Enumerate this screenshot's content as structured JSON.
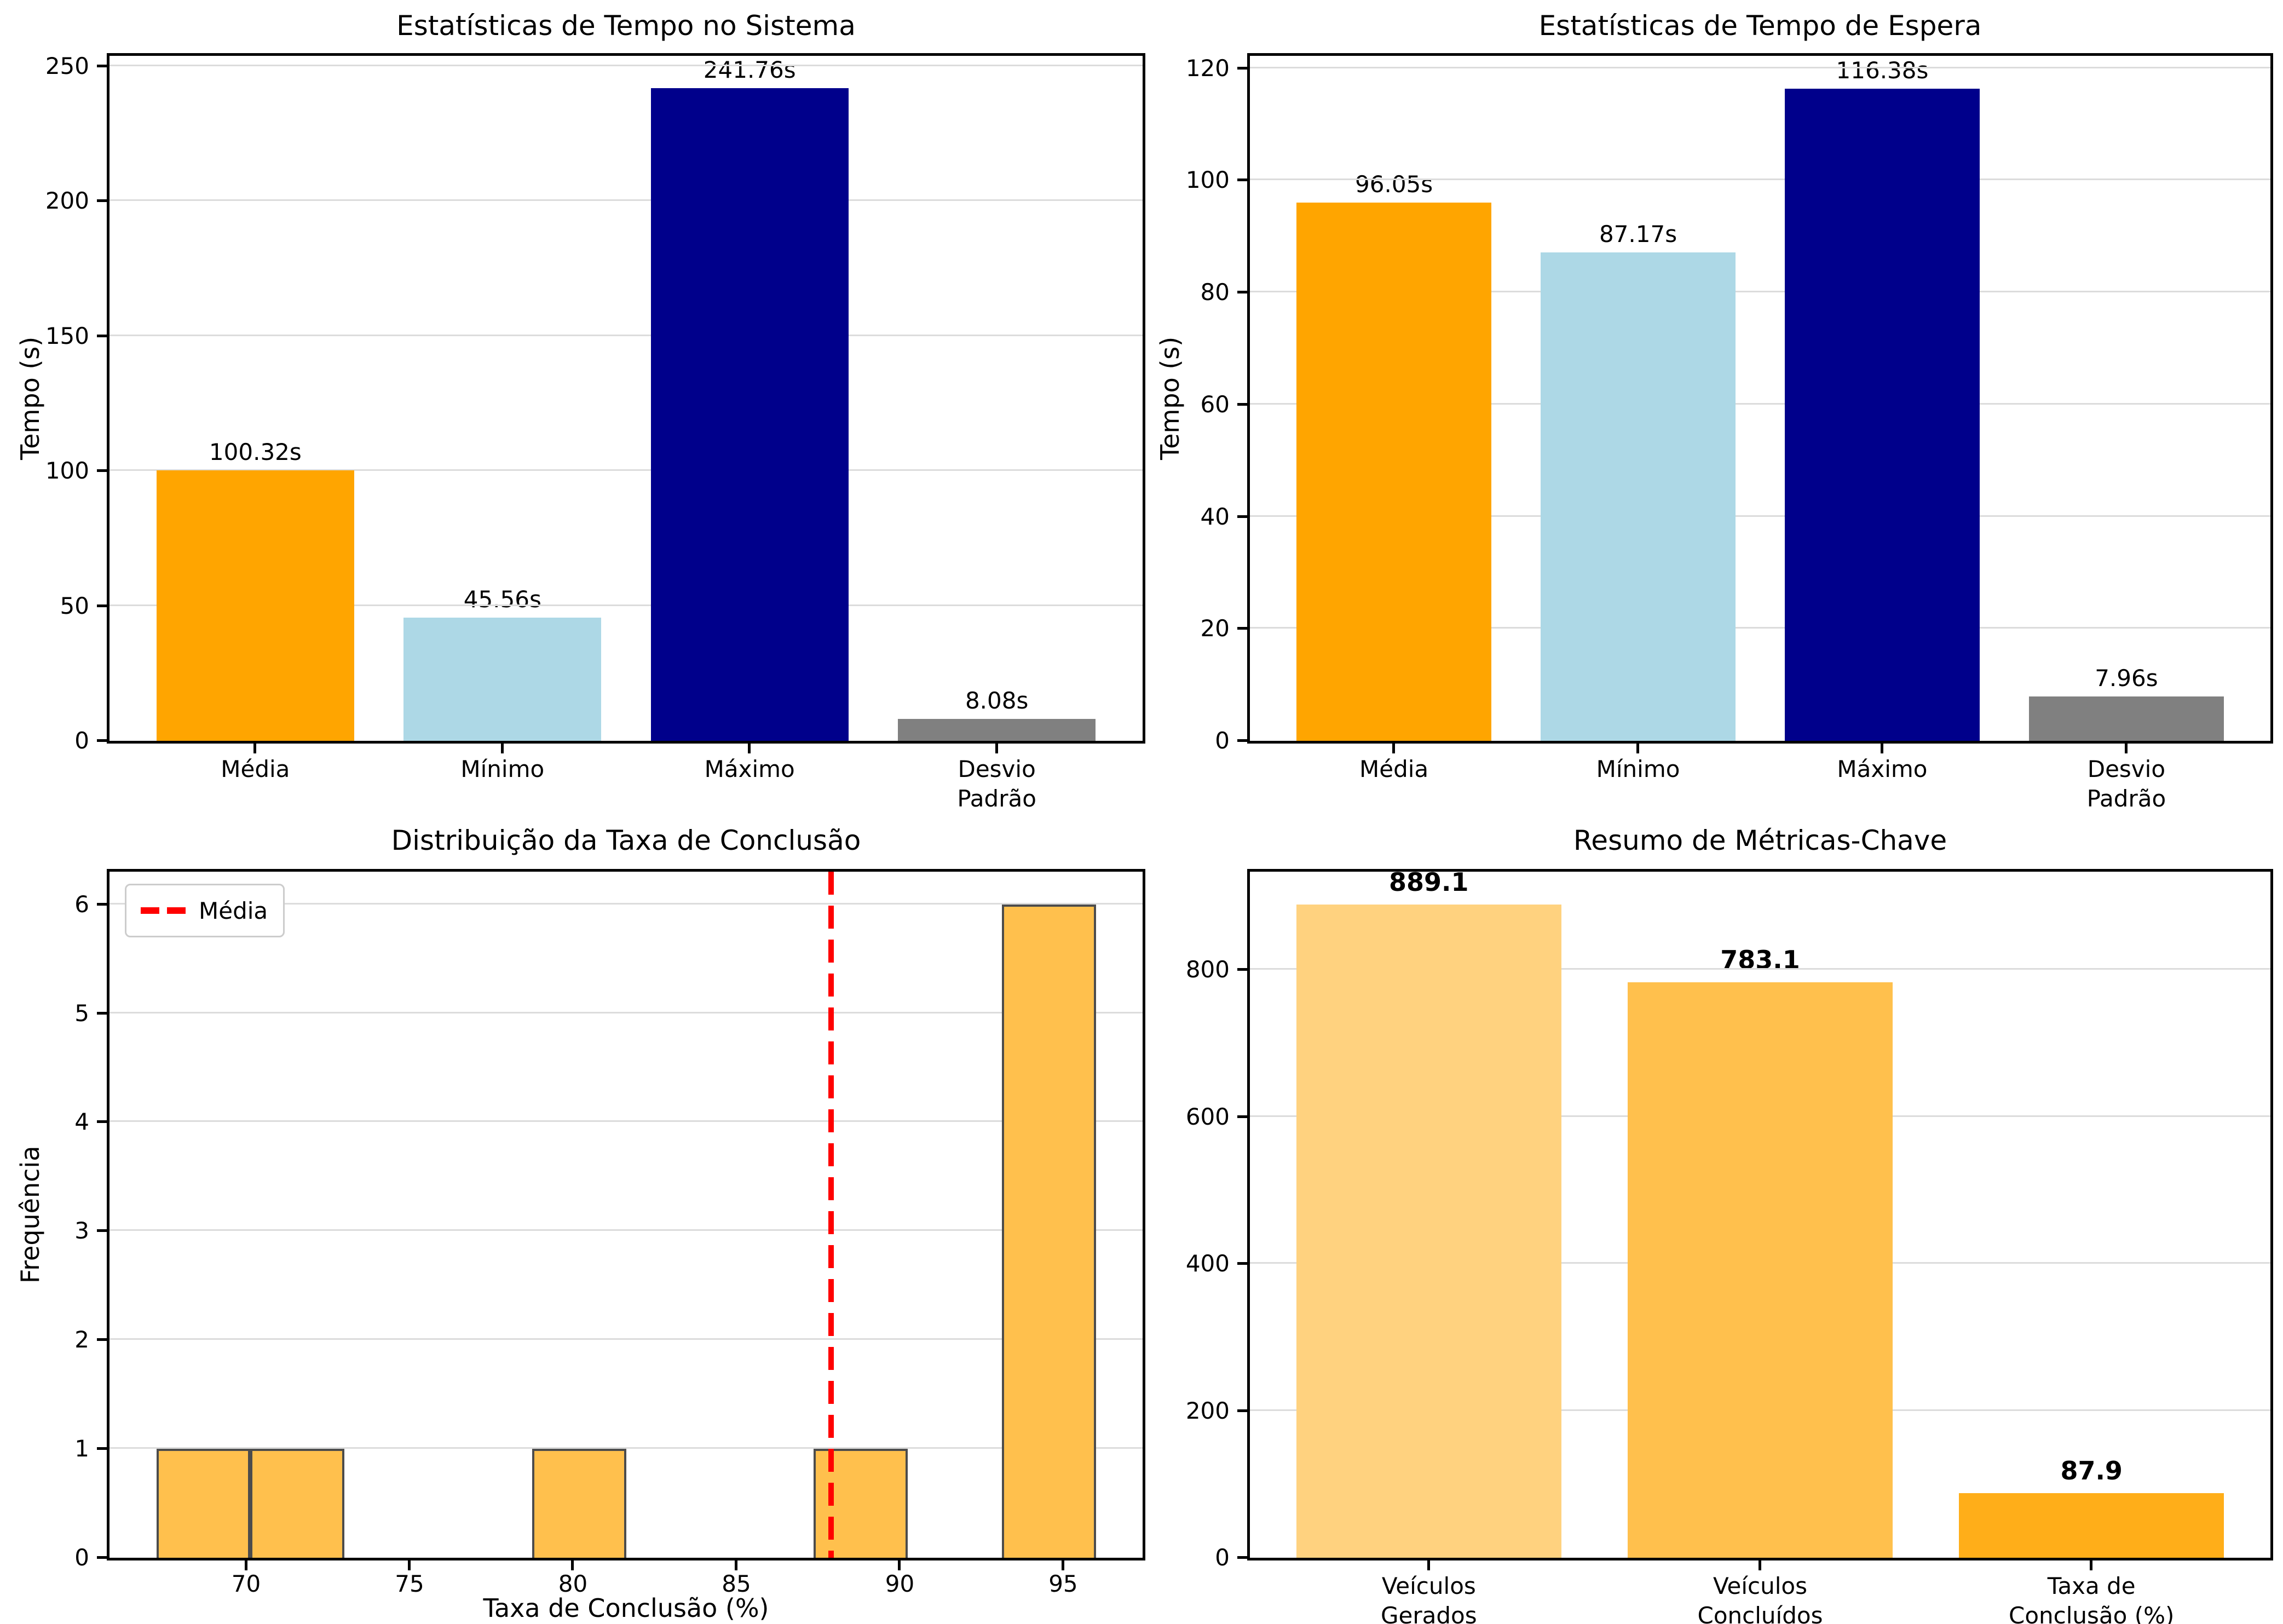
{
  "figure": {
    "background": "#ffffff"
  },
  "chart_data": [
    {
      "type": "bar",
      "title": "Estatísticas de Tempo no Sistema",
      "ylabel": "Tempo (s)",
      "categories": [
        [
          "Média"
        ],
        [
          "Mínimo"
        ],
        [
          "Máximo"
        ],
        [
          "Desvio",
          "Padrão"
        ]
      ],
      "values": [
        100.32,
        45.56,
        241.76,
        8.08
      ],
      "value_labels": [
        "100.32s",
        "45.56s",
        "241.76s",
        "8.08s"
      ],
      "bar_colors": [
        "#FFA500",
        "#ADD8E6",
        "#00008B",
        "#808080"
      ],
      "yticks": [
        0,
        50,
        100,
        150,
        200,
        250
      ],
      "ylim": [
        0,
        253.8
      ],
      "grid": "y",
      "legend_position": "none"
    },
    {
      "type": "bar",
      "title": "Estatísticas de Tempo de Espera",
      "ylabel": "Tempo (s)",
      "categories": [
        [
          "Média"
        ],
        [
          "Mínimo"
        ],
        [
          "Máximo"
        ],
        [
          "Desvio",
          "Padrão"
        ]
      ],
      "values": [
        96.05,
        87.17,
        116.38,
        7.96
      ],
      "value_labels": [
        "96.05s",
        "87.17s",
        "116.38s",
        "7.96s"
      ],
      "bar_colors": [
        "#FFA500",
        "#ADD8E6",
        "#00008B",
        "#808080"
      ],
      "yticks": [
        0,
        20,
        40,
        60,
        80,
        100,
        120
      ],
      "ylim": [
        0,
        122.2
      ],
      "grid": "y",
      "legend_position": "none"
    },
    {
      "type": "histogram",
      "title": "Distribuição da Taxa de Conclusão",
      "xlabel": "Taxa de Conclusão (%)",
      "ylabel": "Frequência",
      "bin_edges": [
        67.26,
        70.13,
        73.01,
        75.88,
        78.75,
        81.63,
        84.5,
        87.37,
        90.25,
        93.12,
        96.0
      ],
      "frequencies": [
        1,
        1,
        0,
        0,
        1,
        0,
        0,
        1,
        0,
        6
      ],
      "bar_color": "#FFC04D",
      "bar_edge_color": "#4C4C4C",
      "mean_line": {
        "value": 87.9,
        "color": "#FF0000",
        "style": "dashed",
        "label": "Média"
      },
      "legend": {
        "label": "Média",
        "position": "upper-left"
      },
      "xticks": [
        70,
        75,
        80,
        85,
        90,
        95
      ],
      "xlim": [
        65.82,
        97.43
      ],
      "yticks": [
        0,
        1,
        2,
        3,
        4,
        5,
        6
      ],
      "ylim": [
        0,
        6.3
      ],
      "grid": "y"
    },
    {
      "type": "bar",
      "title": "Resumo de Métricas-Chave",
      "ylabel": "",
      "categories": [
        [
          "Veículos",
          "Gerados"
        ],
        [
          "Veículos",
          "Concluídos"
        ],
        [
          "Taxa de",
          "Conclusão (%)"
        ]
      ],
      "values": [
        889.1,
        783.1,
        87.9
      ],
      "value_labels": [
        "889.1",
        "783.1",
        "87.9"
      ],
      "value_labels_bold": true,
      "bar_colors": [
        "#FFD27F",
        "#FFC04D",
        "#FFAE19"
      ],
      "yticks": [
        0,
        200,
        400,
        600,
        800
      ],
      "ylim": [
        0,
        933.6
      ],
      "grid": "y",
      "legend_position": "none"
    }
  ],
  "style": {
    "grid_color": "#DCDCDC",
    "spine_color": "#000000",
    "legend_border_color": "#CCCCCC",
    "legend_background": "#ffffff"
  }
}
